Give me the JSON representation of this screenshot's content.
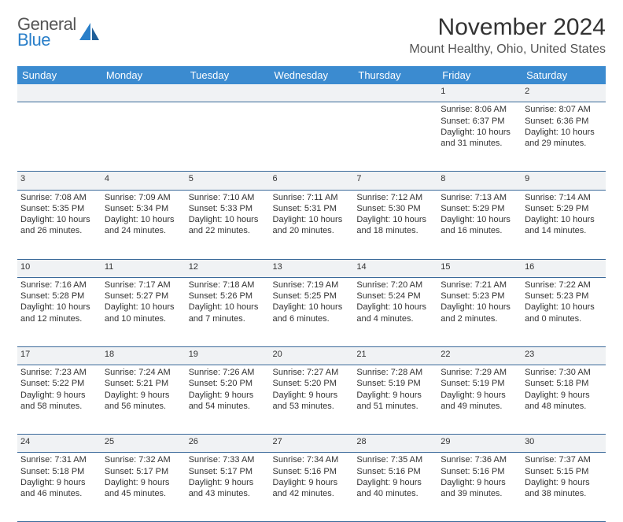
{
  "logo": {
    "line1": "General",
    "line2": "Blue",
    "icon_color": "#2a7fc9"
  },
  "title": "November 2024",
  "location": "Mount Healthy, Ohio, United States",
  "header_bg": "#3b8bd0",
  "header_fg": "#ffffff",
  "daynum_bg": "#f0f2f4",
  "border_color": "#3b6a9a",
  "weekdays": [
    "Sunday",
    "Monday",
    "Tuesday",
    "Wednesday",
    "Thursday",
    "Friday",
    "Saturday"
  ],
  "weeks": [
    [
      null,
      null,
      null,
      null,
      null,
      {
        "n": "1",
        "sr": "Sunrise: 8:06 AM",
        "ss": "Sunset: 6:37 PM",
        "d1": "Daylight: 10 hours",
        "d2": "and 31 minutes."
      },
      {
        "n": "2",
        "sr": "Sunrise: 8:07 AM",
        "ss": "Sunset: 6:36 PM",
        "d1": "Daylight: 10 hours",
        "d2": "and 29 minutes."
      }
    ],
    [
      {
        "n": "3",
        "sr": "Sunrise: 7:08 AM",
        "ss": "Sunset: 5:35 PM",
        "d1": "Daylight: 10 hours",
        "d2": "and 26 minutes."
      },
      {
        "n": "4",
        "sr": "Sunrise: 7:09 AM",
        "ss": "Sunset: 5:34 PM",
        "d1": "Daylight: 10 hours",
        "d2": "and 24 minutes."
      },
      {
        "n": "5",
        "sr": "Sunrise: 7:10 AM",
        "ss": "Sunset: 5:33 PM",
        "d1": "Daylight: 10 hours",
        "d2": "and 22 minutes."
      },
      {
        "n": "6",
        "sr": "Sunrise: 7:11 AM",
        "ss": "Sunset: 5:31 PM",
        "d1": "Daylight: 10 hours",
        "d2": "and 20 minutes."
      },
      {
        "n": "7",
        "sr": "Sunrise: 7:12 AM",
        "ss": "Sunset: 5:30 PM",
        "d1": "Daylight: 10 hours",
        "d2": "and 18 minutes."
      },
      {
        "n": "8",
        "sr": "Sunrise: 7:13 AM",
        "ss": "Sunset: 5:29 PM",
        "d1": "Daylight: 10 hours",
        "d2": "and 16 minutes."
      },
      {
        "n": "9",
        "sr": "Sunrise: 7:14 AM",
        "ss": "Sunset: 5:29 PM",
        "d1": "Daylight: 10 hours",
        "d2": "and 14 minutes."
      }
    ],
    [
      {
        "n": "10",
        "sr": "Sunrise: 7:16 AM",
        "ss": "Sunset: 5:28 PM",
        "d1": "Daylight: 10 hours",
        "d2": "and 12 minutes."
      },
      {
        "n": "11",
        "sr": "Sunrise: 7:17 AM",
        "ss": "Sunset: 5:27 PM",
        "d1": "Daylight: 10 hours",
        "d2": "and 10 minutes."
      },
      {
        "n": "12",
        "sr": "Sunrise: 7:18 AM",
        "ss": "Sunset: 5:26 PM",
        "d1": "Daylight: 10 hours",
        "d2": "and 7 minutes."
      },
      {
        "n": "13",
        "sr": "Sunrise: 7:19 AM",
        "ss": "Sunset: 5:25 PM",
        "d1": "Daylight: 10 hours",
        "d2": "and 6 minutes."
      },
      {
        "n": "14",
        "sr": "Sunrise: 7:20 AM",
        "ss": "Sunset: 5:24 PM",
        "d1": "Daylight: 10 hours",
        "d2": "and 4 minutes."
      },
      {
        "n": "15",
        "sr": "Sunrise: 7:21 AM",
        "ss": "Sunset: 5:23 PM",
        "d1": "Daylight: 10 hours",
        "d2": "and 2 minutes."
      },
      {
        "n": "16",
        "sr": "Sunrise: 7:22 AM",
        "ss": "Sunset: 5:23 PM",
        "d1": "Daylight: 10 hours",
        "d2": "and 0 minutes."
      }
    ],
    [
      {
        "n": "17",
        "sr": "Sunrise: 7:23 AM",
        "ss": "Sunset: 5:22 PM",
        "d1": "Daylight: 9 hours",
        "d2": "and 58 minutes."
      },
      {
        "n": "18",
        "sr": "Sunrise: 7:24 AM",
        "ss": "Sunset: 5:21 PM",
        "d1": "Daylight: 9 hours",
        "d2": "and 56 minutes."
      },
      {
        "n": "19",
        "sr": "Sunrise: 7:26 AM",
        "ss": "Sunset: 5:20 PM",
        "d1": "Daylight: 9 hours",
        "d2": "and 54 minutes."
      },
      {
        "n": "20",
        "sr": "Sunrise: 7:27 AM",
        "ss": "Sunset: 5:20 PM",
        "d1": "Daylight: 9 hours",
        "d2": "and 53 minutes."
      },
      {
        "n": "21",
        "sr": "Sunrise: 7:28 AM",
        "ss": "Sunset: 5:19 PM",
        "d1": "Daylight: 9 hours",
        "d2": "and 51 minutes."
      },
      {
        "n": "22",
        "sr": "Sunrise: 7:29 AM",
        "ss": "Sunset: 5:19 PM",
        "d1": "Daylight: 9 hours",
        "d2": "and 49 minutes."
      },
      {
        "n": "23",
        "sr": "Sunrise: 7:30 AM",
        "ss": "Sunset: 5:18 PM",
        "d1": "Daylight: 9 hours",
        "d2": "and 48 minutes."
      }
    ],
    [
      {
        "n": "24",
        "sr": "Sunrise: 7:31 AM",
        "ss": "Sunset: 5:18 PM",
        "d1": "Daylight: 9 hours",
        "d2": "and 46 minutes."
      },
      {
        "n": "25",
        "sr": "Sunrise: 7:32 AM",
        "ss": "Sunset: 5:17 PM",
        "d1": "Daylight: 9 hours",
        "d2": "and 45 minutes."
      },
      {
        "n": "26",
        "sr": "Sunrise: 7:33 AM",
        "ss": "Sunset: 5:17 PM",
        "d1": "Daylight: 9 hours",
        "d2": "and 43 minutes."
      },
      {
        "n": "27",
        "sr": "Sunrise: 7:34 AM",
        "ss": "Sunset: 5:16 PM",
        "d1": "Daylight: 9 hours",
        "d2": "and 42 minutes."
      },
      {
        "n": "28",
        "sr": "Sunrise: 7:35 AM",
        "ss": "Sunset: 5:16 PM",
        "d1": "Daylight: 9 hours",
        "d2": "and 40 minutes."
      },
      {
        "n": "29",
        "sr": "Sunrise: 7:36 AM",
        "ss": "Sunset: 5:16 PM",
        "d1": "Daylight: 9 hours",
        "d2": "and 39 minutes."
      },
      {
        "n": "30",
        "sr": "Sunrise: 7:37 AM",
        "ss": "Sunset: 5:15 PM",
        "d1": "Daylight: 9 hours",
        "d2": "and 38 minutes."
      }
    ]
  ]
}
